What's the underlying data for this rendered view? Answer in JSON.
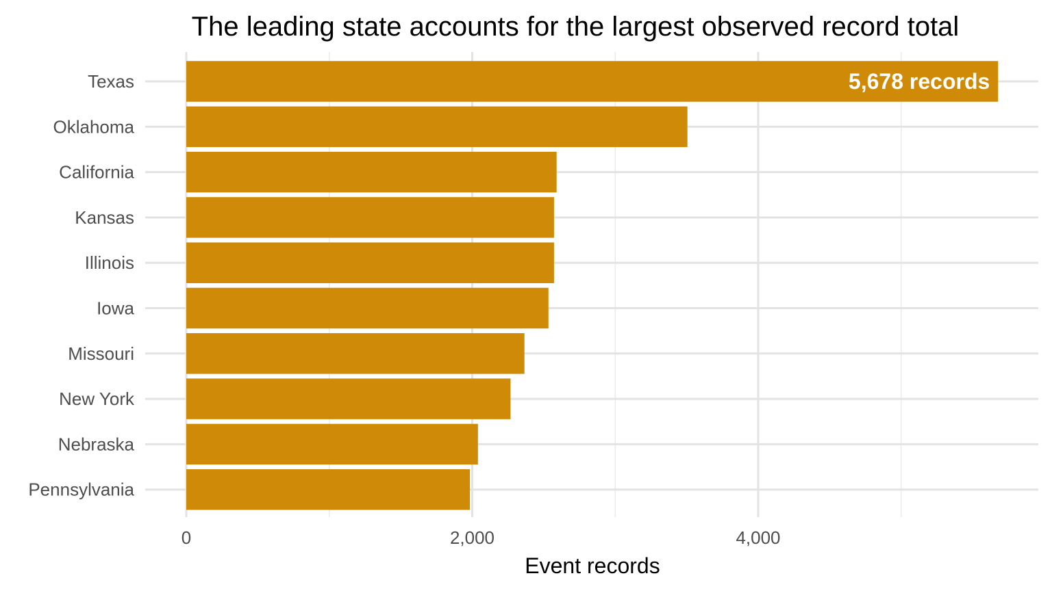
{
  "chart_data": {
    "type": "bar",
    "orientation": "horizontal",
    "title": "The leading state accounts for the largest observed record total",
    "xlabel": "Event records",
    "ylabel": "",
    "categories": [
      "Texas",
      "Oklahoma",
      "California",
      "Kansas",
      "Illinois",
      "Iowa",
      "Missouri",
      "New York",
      "Nebraska",
      "Pennsylvania"
    ],
    "values": [
      5678,
      3505,
      2590,
      2572,
      2572,
      2533,
      2365,
      2268,
      2040,
      1984
    ],
    "xlim": [
      0,
      5950
    ],
    "x_ticks": [
      0,
      2000,
      4000
    ],
    "x_tick_labels": [
      "0",
      "2,000",
      "4,000"
    ],
    "annotation": {
      "category": "Texas",
      "text": "5,678 records"
    },
    "bar_color": "#CF8A07",
    "grid": true
  }
}
